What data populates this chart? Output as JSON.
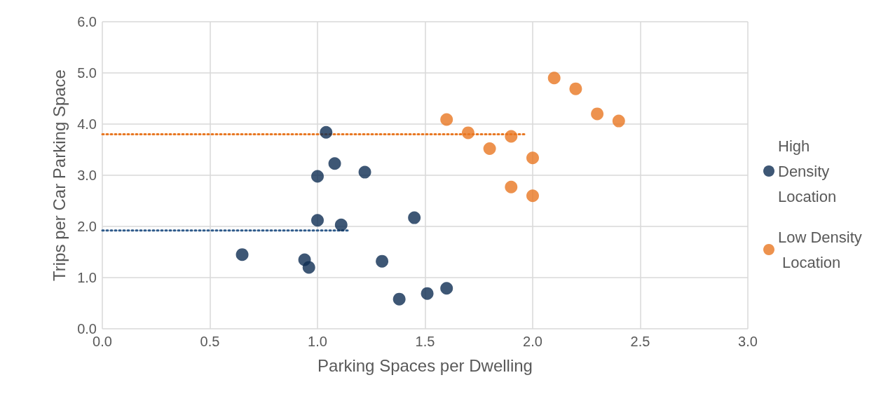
{
  "chart_data": {
    "type": "scatter",
    "xlabel": "Parking Spaces per Dwelling",
    "ylabel": "Trips per Car Parking Space",
    "xlim": [
      0,
      3
    ],
    "xticks": [
      {
        "value": 0,
        "label": "0.0"
      },
      {
        "value": 0.5,
        "label": "0.5"
      },
      {
        "value": 1,
        "label": "1.0"
      },
      {
        "value": 1.5,
        "label": "1.5"
      },
      {
        "value": 2,
        "label": "2.0"
      },
      {
        "value": 2.5,
        "label": "2.5"
      },
      {
        "value": 3,
        "label": "3.0"
      }
    ],
    "ylim": [
      0,
      6
    ],
    "yticks": [
      {
        "value": 0,
        "label": "0.0"
      },
      {
        "value": 1,
        "label": "1.0"
      },
      {
        "value": 2,
        "label": "2.0"
      },
      {
        "value": 3,
        "label": "3.0"
      },
      {
        "value": 4,
        "label": "4.0"
      },
      {
        "value": 5,
        "label": "5.0"
      },
      {
        "value": 6,
        "label": "6.0"
      }
    ],
    "grid": true,
    "legend": "right",
    "marker": "circle",
    "series": [
      {
        "name": "High Density Location",
        "color": "#0e2d52",
        "x": [
          0.65,
          0.94,
          0.96,
          1.0,
          1.0,
          1.04,
          1.08,
          1.11,
          1.22,
          1.3,
          1.38,
          1.45,
          1.51,
          1.6
        ],
        "values": [
          1.45,
          1.35,
          1.2,
          2.12,
          2.98,
          3.84,
          3.23,
          2.03,
          3.06,
          1.32,
          0.58,
          2.17,
          0.69,
          0.79
        ]
      },
      {
        "name": "Low Density Location",
        "color": "#e87722",
        "x": [
          1.6,
          1.7,
          1.8,
          1.9,
          1.9,
          2.0,
          2.0,
          2.1,
          2.2,
          2.3,
          2.4
        ],
        "values": [
          4.09,
          3.83,
          3.52,
          3.76,
          2.77,
          3.34,
          2.6,
          4.9,
          4.69,
          4.2,
          4.06
        ]
      },
      {
        "type": "line",
        "color": "#e87722",
        "line_style": "dotted",
        "marker": "none",
        "x": [
          0,
          1.97
        ],
        "values": [
          3.8,
          3.8
        ]
      },
      {
        "type": "line",
        "color": "#2e5a8a",
        "line_style": "dotted",
        "marker": "none",
        "x": [
          0,
          1.15
        ],
        "values": [
          1.92,
          1.92
        ]
      }
    ]
  }
}
